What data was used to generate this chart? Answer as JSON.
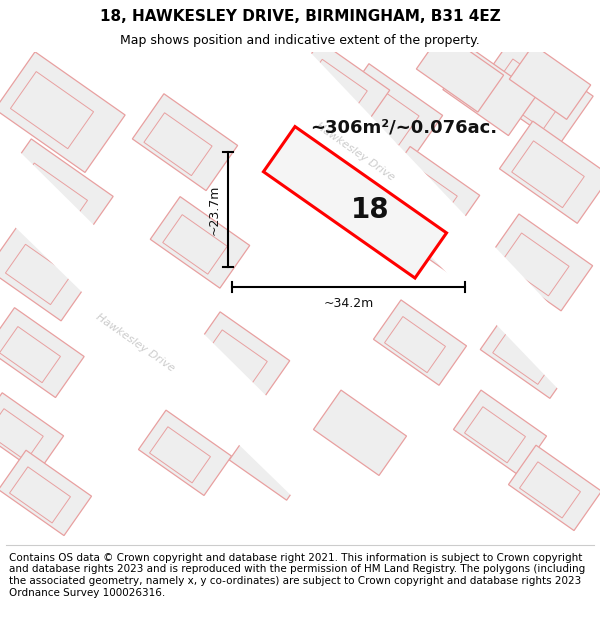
{
  "title": "18, HAWKESLEY DRIVE, BIRMINGHAM, B31 4EZ",
  "subtitle": "Map shows position and indicative extent of the property.",
  "footer": "Contains OS data © Crown copyright and database right 2021. This information is subject to Crown copyright and database rights 2023 and is reproduced with the permission of HM Land Registry. The polygons (including the associated geometry, namely x, y co-ordinates) are subject to Crown copyright and database rights 2023 Ordnance Survey 100026316.",
  "area_label": "~306m²/~0.076ac.",
  "width_label": "~34.2m",
  "height_label": "~23.7m",
  "number_label": "18",
  "map_bg": "#f7f7f7",
  "building_fill": "#eeeeee",
  "building_edge": "#e8a0a0",
  "highlight_fill": "#f5f5f5",
  "highlight_edge": "#ff0000",
  "road_label_color": "#cccccc",
  "title_fontsize": 11,
  "subtitle_fontsize": 9,
  "footer_fontsize": 7.5
}
